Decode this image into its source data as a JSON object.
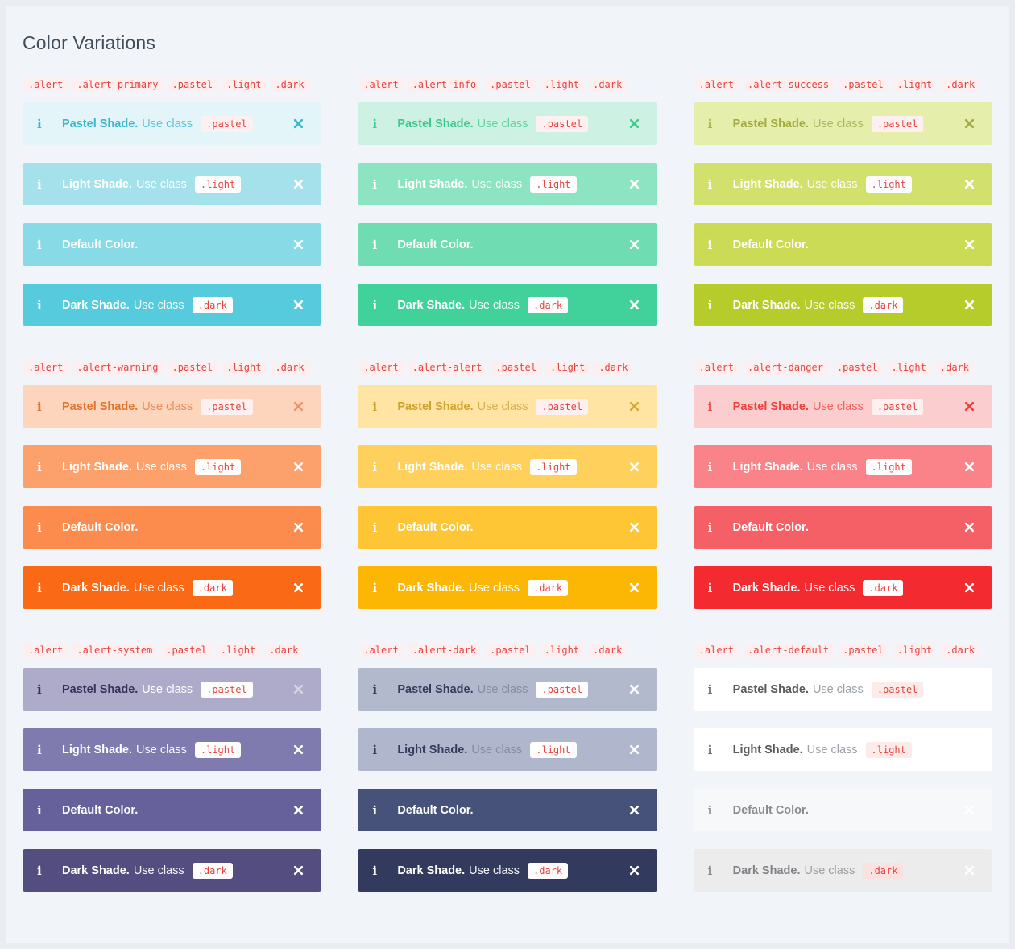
{
  "page": {
    "title": "Color Variations",
    "title_color": "#3f4d5c",
    "background": "#f1f5f9",
    "frame_color": "#e9edf2"
  },
  "icons": {
    "info_glyph": "i",
    "close_glyph": "x"
  },
  "code_chip": {
    "bg": "#fdeeef",
    "fg": "#e8433f"
  },
  "badge": {
    "fg": "#e8433f"
  },
  "row_defs": [
    {
      "variant": "pastel",
      "title": "Pastel Shade.",
      "desc": "Use class",
      "badge": ".pastel"
    },
    {
      "variant": "light",
      "title": "Light Shade.",
      "desc": "Use class",
      "badge": ".light"
    },
    {
      "variant": "default",
      "title": "Default Color.",
      "desc": "",
      "badge": ""
    },
    {
      "variant": "dark",
      "title": "Dark Shade.",
      "desc": "Use class",
      "badge": ".dark"
    }
  ],
  "groups": [
    {
      "name": "primary",
      "code": [
        ".alert",
        ".alert-primary",
        ".pastel",
        ".light",
        ".dark"
      ],
      "rows": [
        {
          "bg": "#e3f5f9",
          "title_c": "#3bb6ca",
          "desc_c": "#5ec4d4",
          "icon_c": "#3bb6ca",
          "close_c": "#3bb6ca",
          "badge_bg": "#fcf1f0"
        },
        {
          "bg": "#a5e1eb",
          "title_c": "#ffffff",
          "desc_c": "rgba(255,255,255,0.95)",
          "icon_c": "#ffffff",
          "close_c": "#ffffff",
          "badge_bg": "#fdfdfd"
        },
        {
          "bg": "#87dae6",
          "title_c": "#ffffff",
          "desc_c": "rgba(255,255,255,0.95)",
          "icon_c": "#ffffff",
          "close_c": "#ffffff",
          "badge_bg": "#fdfdfd"
        },
        {
          "bg": "#55cbdd",
          "title_c": "#ffffff",
          "desc_c": "rgba(255,255,255,0.95)",
          "icon_c": "#ffffff",
          "close_c": "#ffffff",
          "badge_bg": "#fdfdfd"
        }
      ]
    },
    {
      "name": "info",
      "code": [
        ".alert",
        ".alert-info",
        ".pastel",
        ".light",
        ".dark"
      ],
      "rows": [
        {
          "bg": "#cdf2e3",
          "title_c": "#3fc98c",
          "desc_c": "#62d1a0",
          "icon_c": "#3fc98c",
          "close_c": "#3fc98c",
          "badge_bg": "#fcf1f0"
        },
        {
          "bg": "#8ce4c3",
          "title_c": "#ffffff",
          "desc_c": "rgba(255,255,255,0.95)",
          "icon_c": "#ffffff",
          "close_c": "#ffffff",
          "badge_bg": "#fdfdfd"
        },
        {
          "bg": "#70dcb2",
          "title_c": "#ffffff",
          "desc_c": "rgba(255,255,255,0.95)",
          "icon_c": "#ffffff",
          "close_c": "#ffffff",
          "badge_bg": "#fdfdfd"
        },
        {
          "bg": "#41d29c",
          "title_c": "#ffffff",
          "desc_c": "rgba(255,255,255,0.95)",
          "icon_c": "#ffffff",
          "close_c": "#ffffff",
          "badge_bg": "#fdfdfd"
        }
      ]
    },
    {
      "name": "success",
      "code": [
        ".alert",
        ".alert-success",
        ".pastel",
        ".light",
        ".dark"
      ],
      "rows": [
        {
          "bg": "#e5eeab",
          "title_c": "#a2aa41",
          "desc_c": "#afb55e",
          "icon_c": "#a2aa41",
          "close_c": "#a2aa41",
          "badge_bg": "#fcf1f0"
        },
        {
          "bg": "#d2e06e",
          "title_c": "#ffffff",
          "desc_c": "rgba(255,255,255,0.95)",
          "icon_c": "#ffffff",
          "close_c": "#ffffff",
          "badge_bg": "#fdfdfd"
        },
        {
          "bg": "#cbdb55",
          "title_c": "#ffffff",
          "desc_c": "rgba(255,255,255,0.95)",
          "icon_c": "#ffffff",
          "close_c": "#ffffff",
          "badge_bg": "#fdfdfd"
        },
        {
          "bg": "#b6cc2b",
          "title_c": "#ffffff",
          "desc_c": "rgba(255,255,255,0.95)",
          "icon_c": "#ffffff",
          "close_c": "#ffffff",
          "badge_bg": "#fdfdfd"
        }
      ]
    },
    {
      "name": "warning",
      "code": [
        ".alert",
        ".alert-warning",
        ".pastel",
        ".light",
        ".dark"
      ],
      "rows": [
        {
          "bg": "#fdd4bc",
          "title_c": "#df7430",
          "desc_c": "#e68c55",
          "icon_c": "#df7430",
          "close_c": "#ef9366",
          "badge_bg": "#fcf1f0"
        },
        {
          "bg": "#fca16c",
          "title_c": "#ffffff",
          "desc_c": "rgba(255,255,255,0.95)",
          "icon_c": "#ffffff",
          "close_c": "#ffffff",
          "badge_bg": "#fdfdfd"
        },
        {
          "bg": "#fc8c4e",
          "title_c": "#ffffff",
          "desc_c": "rgba(255,255,255,0.95)",
          "icon_c": "#ffffff",
          "close_c": "#ffffff",
          "badge_bg": "#fdfdfd"
        },
        {
          "bg": "#fa6a16",
          "title_c": "#ffffff",
          "desc_c": "rgba(255,255,255,0.95)",
          "icon_c": "#ffffff",
          "close_c": "#ffffff",
          "badge_bg": "#fdfdfd"
        }
      ]
    },
    {
      "name": "alert",
      "code": [
        ".alert",
        ".alert-alert",
        ".pastel",
        ".light",
        ".dark"
      ],
      "rows": [
        {
          "bg": "#ffe4a3",
          "title_c": "#cda32e",
          "desc_c": "#d6b053",
          "icon_c": "#cda32e",
          "close_c": "#d8ab33",
          "badge_bg": "#fcf1f0"
        },
        {
          "bg": "#ffd05c",
          "title_c": "#ffffff",
          "desc_c": "rgba(255,255,255,0.95)",
          "icon_c": "#ffffff",
          "close_c": "#ffffff",
          "badge_bg": "#fdfdfd"
        },
        {
          "bg": "#fec535",
          "title_c": "#ffffff",
          "desc_c": "rgba(255,255,255,0.95)",
          "icon_c": "#ffffff",
          "close_c": "#ffffff",
          "badge_bg": "#fdfdfd"
        },
        {
          "bg": "#fbb703",
          "title_c": "#ffffff",
          "desc_c": "rgba(255,255,255,0.95)",
          "icon_c": "#ffffff",
          "close_c": "#ffffff",
          "badge_bg": "#fdfdfd"
        }
      ]
    },
    {
      "name": "danger",
      "code": [
        ".alert",
        ".alert-danger",
        ".pastel",
        ".light",
        ".dark"
      ],
      "rows": [
        {
          "bg": "#fbcdce",
          "title_c": "#ee403d",
          "desc_c": "#f0625c",
          "icon_c": "#ee403d",
          "close_c": "#ee403d",
          "badge_bg": "#fcf1f0"
        },
        {
          "bg": "#f98388",
          "title_c": "#ffffff",
          "desc_c": "rgba(255,255,255,0.95)",
          "icon_c": "#ffffff",
          "close_c": "#ffffff",
          "badge_bg": "#fdfdfd"
        },
        {
          "bg": "#f56067",
          "title_c": "#ffffff",
          "desc_c": "rgba(255,255,255,0.95)",
          "icon_c": "#ffffff",
          "close_c": "#ffffff",
          "badge_bg": "#fdfdfd"
        },
        {
          "bg": "#f42a31",
          "title_c": "#ffffff",
          "desc_c": "rgba(255,255,255,0.95)",
          "icon_c": "#ffffff",
          "close_c": "#ffffff",
          "badge_bg": "#fdfdfd"
        }
      ]
    },
    {
      "name": "system",
      "code": [
        ".alert",
        ".alert-system",
        ".pastel",
        ".light",
        ".dark"
      ],
      "rows": [
        {
          "bg": "#aeabca",
          "title_c": "#34305a",
          "desc_c": "#ffffff",
          "icon_c": "#34305a",
          "close_c": "#d4d4e2",
          "badge_bg": "#fdfdfd"
        },
        {
          "bg": "#7f7bae",
          "title_c": "#ffffff",
          "desc_c": "rgba(255,255,255,0.95)",
          "icon_c": "#ffffff",
          "close_c": "#ffffff",
          "badge_bg": "#fdfdfd"
        },
        {
          "bg": "#66619b",
          "title_c": "#ffffff",
          "desc_c": "rgba(255,255,255,0.95)",
          "icon_c": "#ffffff",
          "close_c": "#ffffff",
          "badge_bg": "#fdfdfd"
        },
        {
          "bg": "#544e80",
          "title_c": "#ffffff",
          "desc_c": "rgba(255,255,255,0.95)",
          "icon_c": "#ffffff",
          "close_c": "#ffffff",
          "badge_bg": "#fdfdfd"
        }
      ]
    },
    {
      "name": "dark",
      "code": [
        ".alert",
        ".alert-dark",
        ".pastel",
        ".light",
        ".dark"
      ],
      "rows": [
        {
          "bg": "#b3b9cd",
          "title_c": "#343c5e",
          "desc_c": "#848ba4",
          "icon_c": "#343c5e",
          "close_c": "#ffffff",
          "badge_bg": "#fdfdfd"
        },
        {
          "bg": "#b0b6cb",
          "title_c": "#343c5e",
          "desc_c": "#848ba4",
          "icon_c": "#343c5e",
          "close_c": "#ffffff",
          "badge_bg": "#fdfdfd"
        },
        {
          "bg": "#46527a",
          "title_c": "#ffffff",
          "desc_c": "rgba(255,255,255,0.95)",
          "icon_c": "#ffffff",
          "close_c": "#ffffff",
          "badge_bg": "#fdfdfd"
        },
        {
          "bg": "#323b5e",
          "title_c": "#ffffff",
          "desc_c": "rgba(255,255,255,0.95)",
          "icon_c": "#ffffff",
          "close_c": "#ffffff",
          "badge_bg": "#fdfdfd"
        }
      ]
    },
    {
      "name": "default",
      "code": [
        ".alert",
        ".alert-default",
        ".pastel",
        ".light",
        ".dark"
      ],
      "rows": [
        {
          "bg": "#ffffff",
          "title_c": "#56595d",
          "desc_c": "#9ba1a6",
          "icon_c": "#60646a",
          "close_c": "#ffffff",
          "badge_bg": "#fcebe9"
        },
        {
          "bg": "#ffffff",
          "title_c": "#56595d",
          "desc_c": "#9ba1a6",
          "icon_c": "#60646a",
          "close_c": "#ffffff",
          "badge_bg": "#fcebe9"
        },
        {
          "bg": "#f7f8f9",
          "title_c": "#8a8d90",
          "desc_c": "#8a8d90",
          "icon_c": "#8a8d90",
          "close_c": "#ffffff",
          "badge_bg": "#fcebe9"
        },
        {
          "bg": "#ececed",
          "title_c": "#808386",
          "desc_c": "#9da0a3",
          "icon_c": "#808386",
          "close_c": "#ffffff",
          "badge_bg": "#f9e2e0"
        }
      ]
    }
  ]
}
